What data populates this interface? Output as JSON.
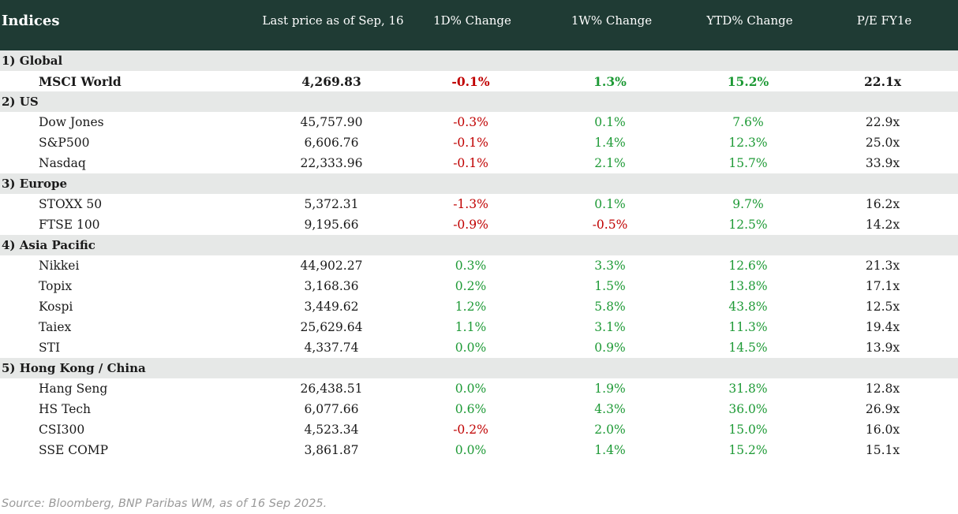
{
  "header": {
    "indices": "Indices",
    "last_price": "Last price as of Sep, 16",
    "d1": "1D% Change",
    "w1": "1W% Change",
    "ytd": "YTD% Change",
    "pe": "P/E FY1e"
  },
  "colors": {
    "header_bg": "#1f3b34",
    "group_bg": "#e6e8e7",
    "negative": "#c00000",
    "positive": "#1e9a36"
  },
  "groups": [
    {
      "label": "1) Global",
      "rows": [
        {
          "name": "MSCI World",
          "price": "4,269.83",
          "d1": "-0.1%",
          "w1": "1.3%",
          "ytd": "15.2%",
          "pe": "22.1x",
          "bold": true
        }
      ]
    },
    {
      "label": "2) US",
      "rows": [
        {
          "name": "Dow Jones",
          "price": "45,757.90",
          "d1": "-0.3%",
          "w1": "0.1%",
          "ytd": "7.6%",
          "pe": "22.9x"
        },
        {
          "name": "S&P500",
          "price": "6,606.76",
          "d1": "-0.1%",
          "w1": "1.4%",
          "ytd": "12.3%",
          "pe": "25.0x"
        },
        {
          "name": "Nasdaq",
          "price": "22,333.96",
          "d1": "-0.1%",
          "w1": "2.1%",
          "ytd": "15.7%",
          "pe": "33.9x"
        }
      ]
    },
    {
      "label": "3) Europe",
      "rows": [
        {
          "name": "STOXX 50",
          "price": "5,372.31",
          "d1": "-1.3%",
          "w1": "0.1%",
          "ytd": "9.7%",
          "pe": "16.2x"
        },
        {
          "name": "FTSE 100",
          "price": "9,195.66",
          "d1": "-0.9%",
          "w1": "-0.5%",
          "ytd": "12.5%",
          "pe": "14.2x"
        }
      ]
    },
    {
      "label": "4) Asia Pacific",
      "rows": [
        {
          "name": "Nikkei",
          "price": "44,902.27",
          "d1": "0.3%",
          "w1": "3.3%",
          "ytd": "12.6%",
          "pe": "21.3x"
        },
        {
          "name": "Topix",
          "price": "3,168.36",
          "d1": "0.2%",
          "w1": "1.5%",
          "ytd": "13.8%",
          "pe": "17.1x"
        },
        {
          "name": "Kospi",
          "price": "3,449.62",
          "d1": "1.2%",
          "w1": "5.8%",
          "ytd": "43.8%",
          "pe": "12.5x"
        },
        {
          "name": "Taiex",
          "price": "25,629.64",
          "d1": "1.1%",
          "w1": "3.1%",
          "ytd": "11.3%",
          "pe": "19.4x"
        },
        {
          "name": "STI",
          "price": "4,337.74",
          "d1": "0.0%",
          "w1": "0.9%",
          "ytd": "14.5%",
          "pe": "13.9x"
        }
      ]
    },
    {
      "label": "5) Hong Kong / China",
      "rows": [
        {
          "name": "Hang Seng",
          "price": "26,438.51",
          "d1": "0.0%",
          "w1": "1.9%",
          "ytd": "31.8%",
          "pe": "12.8x"
        },
        {
          "name": "HS Tech",
          "price": "6,077.66",
          "d1": "0.6%",
          "w1": "4.3%",
          "ytd": "36.0%",
          "pe": "26.9x"
        },
        {
          "name": "CSI300",
          "price": "4,523.34",
          "d1": "-0.2%",
          "w1": "2.0%",
          "ytd": "15.0%",
          "pe": "16.0x"
        },
        {
          "name": "SSE COMP",
          "price": "3,861.87",
          "d1": "0.0%",
          "w1": "1.4%",
          "ytd": "15.2%",
          "pe": "15.1x"
        }
      ]
    }
  ],
  "source": "Source: Bloomberg, BNP Paribas WM, as of 16 Sep 2025."
}
